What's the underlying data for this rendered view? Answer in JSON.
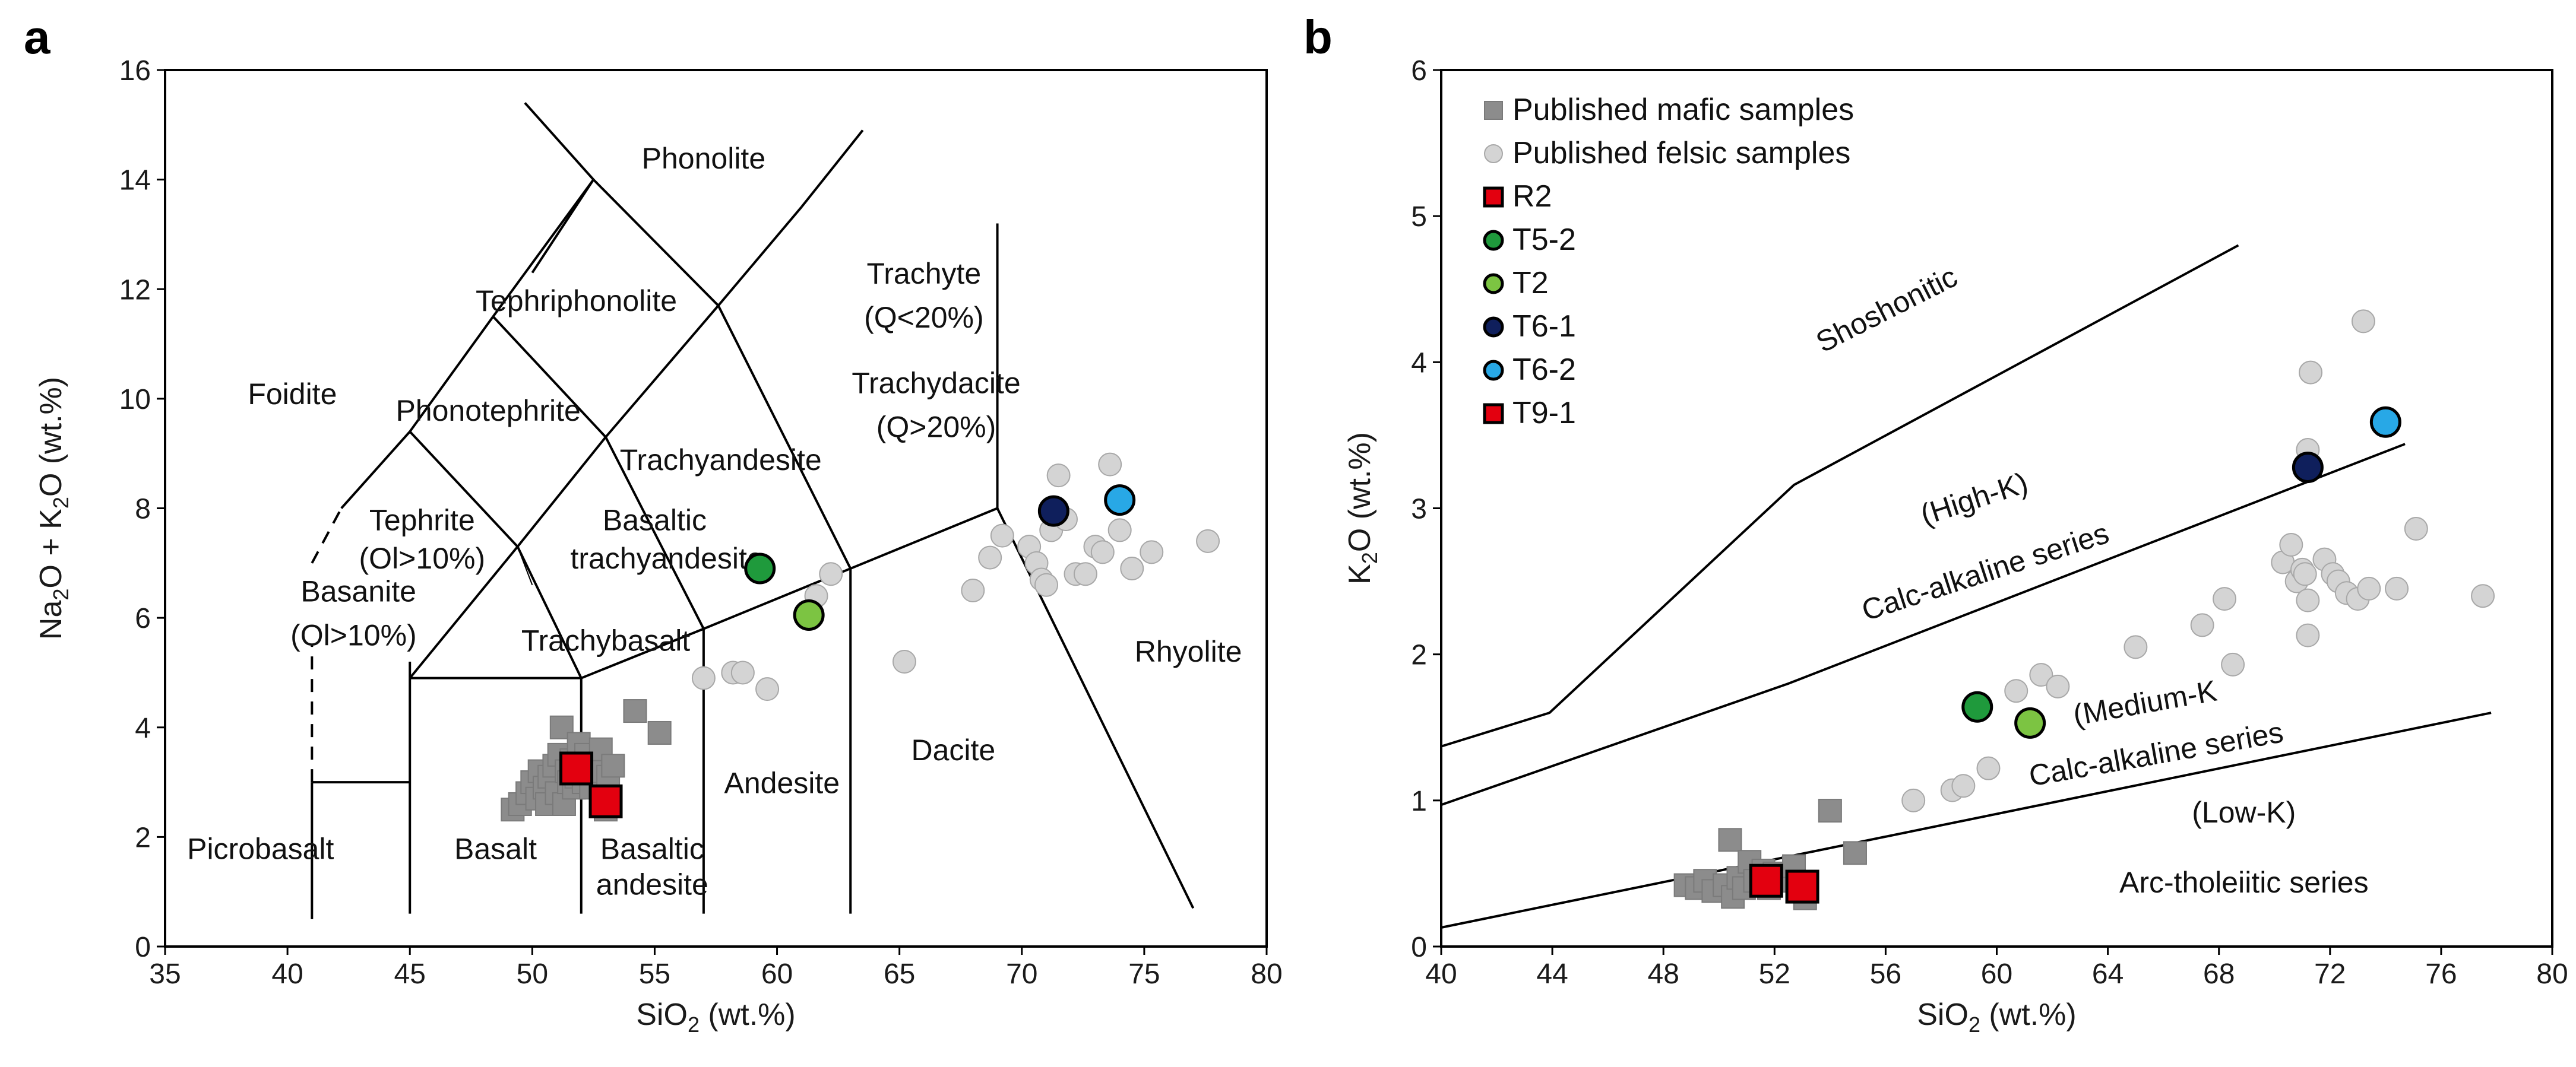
{
  "panels": [
    {
      "id": "a",
      "label": "a",
      "xlabel_main": "SiO",
      "xlabel_sub": "2",
      "xlabel_tail": " (wt.%)",
      "ylabel_parts": [
        [
          "Na",
          ""
        ],
        [
          "2",
          "sub"
        ],
        [
          "O + K",
          ""
        ],
        [
          "2",
          "sub"
        ],
        [
          "O (wt.%)",
          ""
        ]
      ]
    },
    {
      "id": "b",
      "label": "b",
      "xlabel_main": "SiO",
      "xlabel_sub": "2",
      "xlabel_tail": " (wt.%)",
      "ylabel_parts": [
        [
          "K",
          ""
        ],
        [
          "2",
          "sub"
        ],
        [
          "O (wt.%)",
          ""
        ]
      ]
    }
  ],
  "legend": [
    {
      "label": "Published mafic samples",
      "marker": "square",
      "color": "#8c8c8c"
    },
    {
      "label": "Published felsic samples",
      "marker": "circle",
      "color": "#d4d4d4"
    },
    {
      "label": "R2",
      "marker": "square",
      "color": "#e3000f"
    },
    {
      "label": "T5-2",
      "marker": "circle",
      "color": "#1f9a3c"
    },
    {
      "label": "T2",
      "marker": "circle",
      "color": "#7cc442"
    },
    {
      "label": "T6-1",
      "marker": "circle",
      "color": "#0f1f5c"
    },
    {
      "label": "T6-2",
      "marker": "circle",
      "color": "#28a8e6"
    },
    {
      "label": "T9-1",
      "marker": "square",
      "color": "#e3000f"
    }
  ],
  "chart_data": [
    {
      "type": "scatter",
      "panel": "a",
      "xlim": [
        35,
        80
      ],
      "ylim": [
        0,
        16
      ],
      "xticks": [
        35,
        40,
        45,
        50,
        55,
        60,
        65,
        70,
        75,
        80
      ],
      "yticks": [
        0,
        2,
        4,
        6,
        8,
        10,
        12,
        14,
        16
      ],
      "grid": false,
      "boundaries": [
        [
          [
            41,
            0.5
          ],
          [
            41,
            3
          ]
        ],
        [
          [
            41,
            3
          ],
          [
            45,
            3
          ]
        ],
        [
          [
            45,
            0.6
          ],
          [
            45,
            4.9
          ]
        ],
        [
          [
            45,
            4.9
          ],
          [
            52,
            4.9
          ]
        ],
        [
          [
            52,
            0.6
          ],
          [
            52,
            4.9
          ]
        ],
        [
          [
            52,
            4.9
          ],
          [
            57,
            5.8
          ]
        ],
        [
          [
            57,
            5.8
          ],
          [
            63,
            6.9
          ]
        ],
        [
          [
            63,
            6.9
          ],
          [
            69,
            8
          ]
        ],
        [
          [
            57,
            0.6
          ],
          [
            57,
            5.8
          ]
        ],
        [
          [
            63,
            0.6
          ],
          [
            63,
            6.9
          ]
        ],
        [
          [
            69,
            8
          ],
          [
            77,
            0.7
          ]
        ],
        [
          [
            69,
            8
          ],
          [
            69,
            13.2
          ]
        ],
        [
          [
            45,
            4.9
          ],
          [
            49.4,
            7.3
          ]
        ],
        [
          [
            49.4,
            7.3
          ],
          [
            53,
            9.3
          ]
        ],
        [
          [
            53,
            9.3
          ],
          [
            57.6,
            11.7
          ]
        ],
        [
          [
            57.6,
            11.7
          ],
          [
            61,
            13.5
          ]
        ],
        [
          [
            61,
            13.5
          ],
          [
            63.5,
            14.9
          ]
        ],
        [
          [
            52,
            4.9
          ],
          [
            49.4,
            7.3
          ]
        ],
        [
          [
            57,
            5.8
          ],
          [
            53,
            9.3
          ]
        ],
        [
          [
            63,
            6.9
          ],
          [
            57.6,
            11.7
          ]
        ],
        [
          [
            45,
            4.9
          ],
          [
            45,
            5.2
          ]
        ],
        [
          [
            45,
            9.4
          ],
          [
            48.4,
            11.5
          ]
        ],
        [
          [
            48.4,
            11.5
          ],
          [
            52.5,
            14.0
          ]
        ],
        [
          [
            52.5,
            14.0
          ],
          [
            57.6,
            11.7
          ]
        ],
        [
          [
            48.4,
            11.5
          ],
          [
            53,
            9.3
          ]
        ],
        [
          [
            52.5,
            14.0
          ],
          [
            50,
            12.3
          ]
        ],
        [
          [
            52.5,
            14.0
          ],
          [
            49.7,
            15.4
          ]
        ],
        [
          [
            45,
            9.4
          ],
          [
            49.4,
            7.3
          ]
        ],
        [
          [
            42.2,
            8.0
          ],
          [
            45,
            9.4
          ]
        ]
      ],
      "dashed_boundaries": [
        [
          [
            41,
            3
          ],
          [
            41,
            5.5
          ]
        ],
        [
          [
            41,
            7.0
          ],
          [
            42.2,
            8.0
          ]
        ]
      ],
      "thin_boundaries": [
        [
          [
            49.4,
            7.3
          ],
          [
            50,
            6.6
          ]
        ]
      ],
      "field_labels": [
        {
          "text": "Picrobasalt",
          "x": 38.9,
          "y": 1.6
        },
        {
          "text": "Basalt",
          "x": 48.5,
          "y": 1.6
        },
        {
          "text": "Basaltic",
          "x": 54.9,
          "y": 1.6
        },
        {
          "text": "andesite",
          "x": 54.9,
          "y": 0.95
        },
        {
          "text": "Andesite",
          "x": 60.2,
          "y": 2.8
        },
        {
          "text": "Dacite",
          "x": 67.2,
          "y": 3.4
        },
        {
          "text": "Rhyolite",
          "x": 76.8,
          "y": 5.2
        },
        {
          "text": "Trachybasalt",
          "x": 53.0,
          "y": 5.4
        },
        {
          "text": "Basaltic",
          "x": 55.0,
          "y": 7.6
        },
        {
          "text": "trachyandesite",
          "x": 55.5,
          "y": 6.9
        },
        {
          "text": "Trachyandesite",
          "x": 57.7,
          "y": 8.7
        },
        {
          "text": "Trachydacite",
          "x": 66.5,
          "y": 10.1
        },
        {
          "text": "(Q>20%)",
          "x": 66.5,
          "y": 9.3
        },
        {
          "text": "Trachyte",
          "x": 66.0,
          "y": 12.1
        },
        {
          "text": "(Q<20%)",
          "x": 66.0,
          "y": 11.3
        },
        {
          "text": "Phonolite",
          "x": 57.0,
          "y": 14.2
        },
        {
          "text": "Tephriphonolite",
          "x": 51.8,
          "y": 11.6
        },
        {
          "text": "Phonotephrite",
          "x": 48.2,
          "y": 9.6
        },
        {
          "text": "Foidite",
          "x": 40.2,
          "y": 9.9
        },
        {
          "text": "Tephrite",
          "x": 45.5,
          "y": 7.6
        },
        {
          "text": "(Ol>10%)",
          "x": 45.5,
          "y": 6.9
        },
        {
          "text": "Basanite",
          "x": 42.9,
          "y": 6.3
        },
        {
          "text": "(Ol>10%)",
          "x": 42.7,
          "y": 5.5
        }
      ],
      "series": [
        {
          "name": "Published mafic samples",
          "marker": "square",
          "color": "#8c8c8c",
          "x": [
            49.2,
            49.5,
            49.8,
            50.0,
            50.2,
            50.3,
            50.5,
            50.6,
            50.7,
            50.9,
            51.0,
            51.1,
            51.2,
            51.3,
            51.4,
            51.5,
            51.6,
            51.7,
            51.8,
            51.9,
            52.0,
            52.1,
            52.2,
            52.4,
            52.6,
            52.8,
            53.0,
            53.1,
            53.3,
            54.2,
            55.2
          ],
          "y": [
            2.5,
            2.6,
            2.8,
            3.0,
            2.7,
            3.2,
            2.9,
            2.6,
            3.1,
            3.3,
            2.8,
            3.5,
            4.0,
            2.6,
            3.2,
            3.0,
            3.4,
            2.9,
            3.1,
            3.7,
            3.3,
            3.0,
            3.5,
            2.9,
            3.2,
            3.6,
            2.5,
            3.1,
            3.3,
            4.3,
            3.9
          ]
        },
        {
          "name": "Published felsic samples",
          "marker": "circle",
          "color": "#d4d4d4",
          "x": [
            57.0,
            58.2,
            58.6,
            59.6,
            61.6,
            62.2,
            65.2,
            68.0,
            68.7,
            69.2,
            70.3,
            70.6,
            70.8,
            71.0,
            71.2,
            71.5,
            71.8,
            72.2,
            72.6,
            73.0,
            73.3,
            73.6,
            74.0,
            74.5,
            75.3,
            77.6
          ],
          "y": [
            4.9,
            5.0,
            5.0,
            4.7,
            6.4,
            6.8,
            5.2,
            6.5,
            7.1,
            7.5,
            7.3,
            7.0,
            6.7,
            6.6,
            7.6,
            8.6,
            7.8,
            6.8,
            6.8,
            7.3,
            7.2,
            8.8,
            7.6,
            6.9,
            7.2,
            7.4
          ]
        },
        {
          "name": "R2",
          "marker": "square",
          "color": "#e3000f",
          "x": [
            51.8
          ],
          "y": [
            3.25
          ]
        },
        {
          "name": "T9-1",
          "marker": "square",
          "color": "#e3000f",
          "x": [
            53.0
          ],
          "y": [
            2.65
          ]
        },
        {
          "name": "T5-2",
          "marker": "circle",
          "color": "#1f9a3c",
          "x": [
            59.3
          ],
          "y": [
            6.9
          ]
        },
        {
          "name": "T2",
          "marker": "circle",
          "color": "#7cc442",
          "x": [
            61.3
          ],
          "y": [
            6.05
          ]
        },
        {
          "name": "T6-1",
          "marker": "circle",
          "color": "#0f1f5c",
          "x": [
            71.3
          ],
          "y": [
            7.95
          ]
        },
        {
          "name": "T6-2",
          "marker": "circle",
          "color": "#28a8e6",
          "x": [
            74.0
          ],
          "y": [
            8.15
          ]
        }
      ]
    },
    {
      "type": "scatter",
      "panel": "b",
      "xlim": [
        40,
        80
      ],
      "ylim": [
        0,
        6
      ],
      "xticks": [
        40,
        44,
        48,
        52,
        56,
        60,
        64,
        68,
        72,
        76,
        80
      ],
      "yticks": [
        0,
        1,
        2,
        3,
        4,
        5,
        6
      ],
      "grid": false,
      "legend_position": "top-left",
      "boundaries": [
        [
          [
            40,
            1.37
          ],
          [
            43.9,
            1.6
          ],
          [
            52.7,
            3.16
          ],
          [
            68.7,
            4.8
          ]
        ],
        [
          [
            40,
            0.97
          ],
          [
            52.5,
            1.8
          ],
          [
            74.7,
            3.44
          ]
        ],
        [
          [
            40,
            0.13
          ],
          [
            77.8,
            1.6
          ]
        ]
      ],
      "field_labels": [
        {
          "text": "Shoshonitic",
          "x": 56.2,
          "y": 4.3,
          "rotate": -27
        },
        {
          "text": "(High-K)",
          "x": 59.3,
          "y": 3.0,
          "rotate": -18
        },
        {
          "text": "Calc-alkaline series",
          "x": 59.7,
          "y": 2.5,
          "rotate": -18
        },
        {
          "text": "(Medium-K",
          "x": 65.4,
          "y": 1.6,
          "rotate": -10
        },
        {
          "text": "Calc-alkaline series",
          "x": 65.8,
          "y": 1.25,
          "rotate": -10
        },
        {
          "text": "(Low-K)",
          "x": 68.9,
          "y": 0.85
        },
        {
          "text": "Arc-tholeiitic series",
          "x": 68.9,
          "y": 0.37
        }
      ],
      "series": [
        {
          "name": "Published mafic samples",
          "marker": "square",
          "color": "#8c8c8c",
          "x": [
            48.8,
            49.2,
            49.5,
            49.8,
            50.2,
            50.4,
            50.5,
            50.7,
            50.9,
            51.1,
            51.3,
            51.6,
            51.8,
            52.0,
            52.4,
            52.7,
            53.0,
            53.1,
            54.0,
            54.9
          ],
          "y": [
            0.42,
            0.4,
            0.45,
            0.38,
            0.42,
            0.73,
            0.34,
            0.47,
            0.4,
            0.58,
            0.45,
            0.52,
            0.4,
            0.5,
            0.45,
            0.55,
            0.4,
            0.33,
            0.93,
            0.64
          ]
        },
        {
          "name": "Published felsic samples",
          "marker": "circle",
          "color": "#d4d4d4",
          "x": [
            57.0,
            58.4,
            58.8,
            59.7,
            60.7,
            61.6,
            62.2,
            65.0,
            67.4,
            68.2,
            68.5,
            70.3,
            70.6,
            70.8,
            71.0,
            71.1,
            71.2,
            71.2,
            71.2,
            71.3,
            71.8,
            72.1,
            72.3,
            72.6,
            73.0,
            73.2,
            73.4,
            74.4,
            75.1,
            77.5
          ],
          "y": [
            1.0,
            1.07,
            1.1,
            1.22,
            1.75,
            1.86,
            1.78,
            2.05,
            2.2,
            2.38,
            1.93,
            2.63,
            2.75,
            2.5,
            2.58,
            2.55,
            2.13,
            2.37,
            3.4,
            3.93,
            2.65,
            2.55,
            2.5,
            2.42,
            2.38,
            4.28,
            2.45,
            2.45,
            2.86,
            2.4
          ]
        },
        {
          "name": "R2",
          "marker": "square",
          "color": "#e3000f",
          "x": [
            51.7
          ],
          "y": [
            0.45
          ]
        },
        {
          "name": "T9-1",
          "marker": "square",
          "color": "#e3000f",
          "x": [
            53.0
          ],
          "y": [
            0.41
          ]
        },
        {
          "name": "T5-2",
          "marker": "circle",
          "color": "#1f9a3c",
          "x": [
            59.3
          ],
          "y": [
            1.64
          ]
        },
        {
          "name": "T2",
          "marker": "circle",
          "color": "#7cc442",
          "x": [
            61.2
          ],
          "y": [
            1.53
          ]
        },
        {
          "name": "T6-1",
          "marker": "circle",
          "color": "#0f1f5c",
          "x": [
            71.2
          ],
          "y": [
            3.28
          ]
        },
        {
          "name": "T6-2",
          "marker": "circle",
          "color": "#28a8e6",
          "x": [
            74.0
          ],
          "y": [
            3.59
          ]
        }
      ]
    }
  ]
}
